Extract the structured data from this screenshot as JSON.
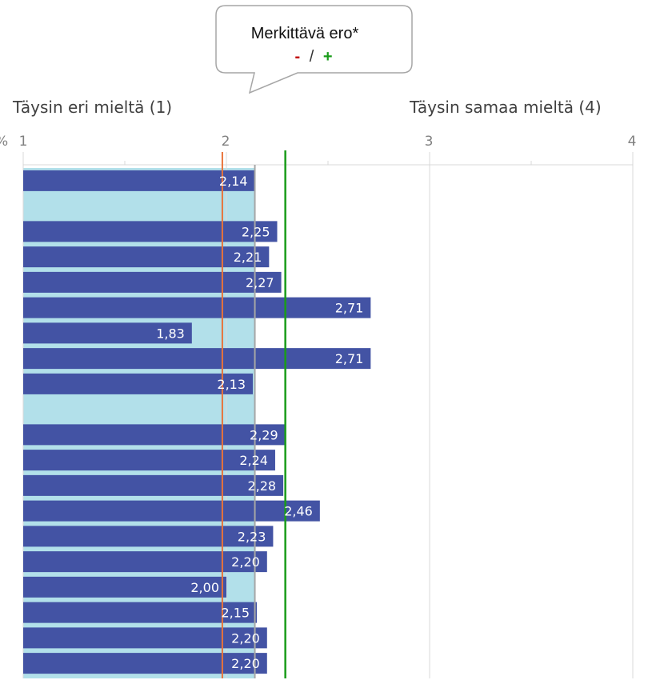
{
  "callout": {
    "title": "Merkittävä ero*",
    "minus": "-",
    "separator": "/",
    "plus": "+"
  },
  "scale": {
    "left_label": "Täysin eri mieltä (1)",
    "right_label": "Täysin samaa mieltä (4)",
    "cut_label": "%"
  },
  "colors": {
    "bar": "#4353a4",
    "highlight": "#b2e0ea",
    "orange_line": "#e8733a",
    "green_line": "#1a9c1a",
    "gray_line": "#a6a6a6",
    "grid": "#d9d9d9",
    "minus": "#c00000",
    "plus": "#1a9c1a"
  },
  "chart_data": {
    "type": "bar",
    "orientation": "horizontal",
    "xlim": [
      1,
      4
    ],
    "x_ticks": [
      "1",
      "2",
      "3",
      "4"
    ],
    "reference_lines": {
      "orange": 1.98,
      "gray": 2.14,
      "green": 2.29
    },
    "series": [
      {
        "values": [
          2.14,
          null,
          2.25,
          2.21,
          2.27,
          2.71,
          1.83,
          2.71,
          2.13,
          null,
          2.29,
          2.24,
          2.28,
          2.46,
          2.23,
          2.2,
          2.0,
          2.15,
          2.2,
          2.2
        ],
        "labels": [
          "2,14",
          "",
          "2,25",
          "2,21",
          "2,27",
          "2,71",
          "1,83",
          "2,71",
          "2,13",
          "",
          "2,29",
          "2,24",
          "2,28",
          "2,46",
          "2,23",
          "2,20",
          "2,00",
          "2,15",
          "2,20",
          "2,20"
        ]
      }
    ],
    "highlight_rows": [
      1,
      9
    ],
    "grid": true,
    "legend": "none"
  }
}
